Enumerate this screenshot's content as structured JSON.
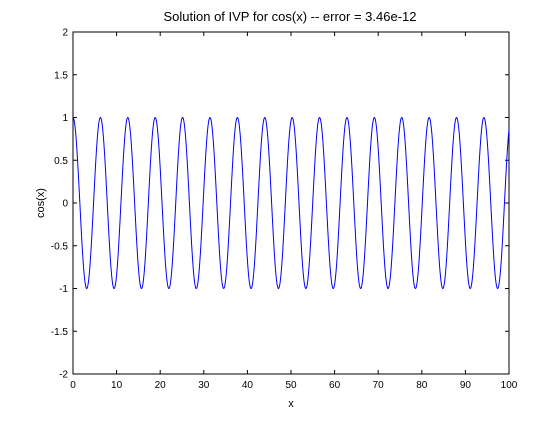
{
  "chart_data": {
    "type": "line",
    "title": "Solution of IVP for cos(x) -- error = 3.46e-12",
    "xlabel": "x",
    "ylabel": "cos(x)",
    "xlim": [
      0,
      100
    ],
    "ylim": [
      -2,
      2
    ],
    "x_ticks": [
      0,
      10,
      20,
      30,
      40,
      50,
      60,
      70,
      80,
      90,
      100
    ],
    "x_tick_labels": [
      "0",
      "10",
      "20",
      "30",
      "40",
      "50",
      "60",
      "70",
      "80",
      "90",
      "100"
    ],
    "y_ticks": [
      -2,
      -1.5,
      -1,
      -0.5,
      0,
      0.5,
      1,
      1.5,
      2
    ],
    "y_tick_labels": [
      "-2",
      "-1.5",
      "-1",
      "-0.5",
      "0",
      "0.5",
      "1",
      "1.5",
      "2"
    ],
    "grid": false,
    "legend": "none",
    "series": [
      {
        "function": "cos(x)",
        "x_range": [
          0,
          100
        ],
        "color": "#0000ff"
      }
    ]
  }
}
